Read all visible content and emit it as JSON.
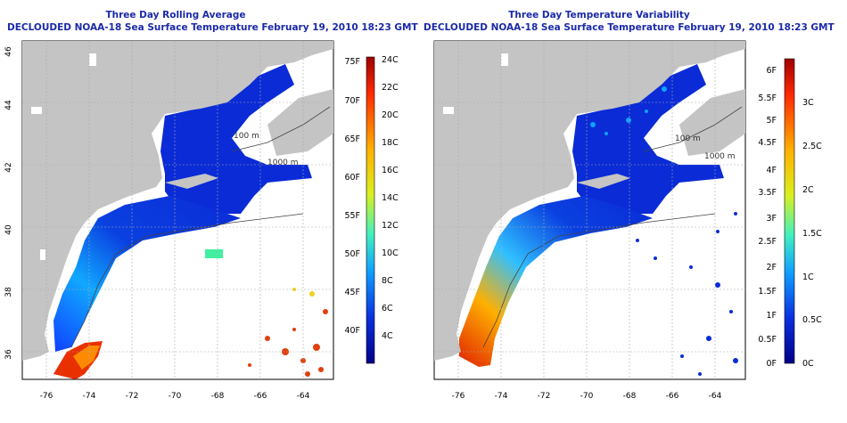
{
  "left": {
    "title": "Three Day Rolling Average",
    "subtitle": "DECLOUDED NOAA-18 Sea Surface Temperature February 19, 2010 18:23 GMT",
    "fahrenheit_ticks": [
      "75F",
      "70F",
      "65F",
      "60F",
      "55F",
      "50F",
      "45F",
      "40F"
    ],
    "celsius_ticks": [
      "24C",
      "22C",
      "20C",
      "18C",
      "16C",
      "14C",
      "12C",
      "10C",
      "8C",
      "6C",
      "4C"
    ]
  },
  "right": {
    "title": "Three Day Temperature Variability",
    "subtitle": "DECLOUDED NOAA-18 Sea Surface Temperature February 19, 2010 18:23 GMT",
    "fahrenheit_ticks": [
      "6F",
      "5.5F",
      "5F",
      "4.5F",
      "4F",
      "3.5F",
      "3F",
      "2.5F",
      "2F",
      "1.5F",
      "1F",
      "0.5F",
      "0F"
    ],
    "celsius_ticks": [
      "3C",
      "2.5C",
      "2C",
      "1.5C",
      "1C",
      "0.5C",
      "0C"
    ]
  },
  "map": {
    "lon_ticks": [
      "-76",
      "-74",
      "-72",
      "-70",
      "-68",
      "-66",
      "-64"
    ],
    "lat_ticks": [
      "46",
      "44",
      "42",
      "40",
      "38",
      "36"
    ],
    "contour_labels": [
      "100 m",
      "1000 m",
      "100 m",
      "1000 m"
    ]
  },
  "colors": {
    "land": "#c4c4c4",
    "ocean_cold": "#0a2bd6",
    "title": "#1b2aa8"
  }
}
